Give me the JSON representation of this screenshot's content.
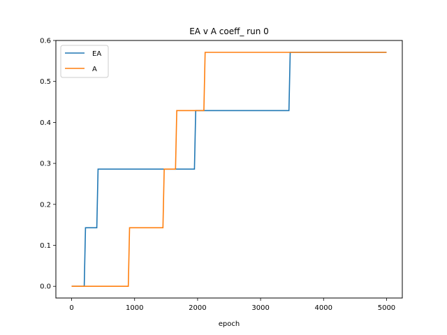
{
  "chart_data": {
    "type": "line",
    "title": "EA v A coeff_ run 0",
    "xlabel": "epoch",
    "ylabel": "",
    "xlim": [
      -250,
      5250
    ],
    "ylim": [
      -0.0286,
      0.6
    ],
    "xticks": [
      0,
      1000,
      2000,
      3000,
      4000,
      5000
    ],
    "yticks": [
      0.0,
      0.1,
      0.2,
      0.3,
      0.4,
      0.5,
      0.6
    ],
    "xtick_labels": [
      "0",
      "1000",
      "2000",
      "3000",
      "4000",
      "5000"
    ],
    "ytick_labels": [
      "0.0",
      "0.1",
      "0.2",
      "0.3",
      "0.4",
      "0.5",
      "0.6"
    ],
    "grid": false,
    "legend": "top-left",
    "series": [
      {
        "name": "EA",
        "color": "#1f77b4",
        "x": [
          0,
          200,
          220,
          400,
          420,
          1950,
          1970,
          3450,
          3470,
          5000
        ],
        "y": [
          0.0,
          0.0,
          0.143,
          0.143,
          0.286,
          0.286,
          0.429,
          0.429,
          0.571,
          0.571
        ]
      },
      {
        "name": "A",
        "color": "#ff7f0e",
        "x": [
          0,
          900,
          920,
          1450,
          1470,
          1650,
          1670,
          2100,
          2120,
          5000
        ],
        "y": [
          0.0,
          0.0,
          0.143,
          0.143,
          0.286,
          0.286,
          0.429,
          0.429,
          0.571,
          0.571
        ]
      }
    ]
  }
}
